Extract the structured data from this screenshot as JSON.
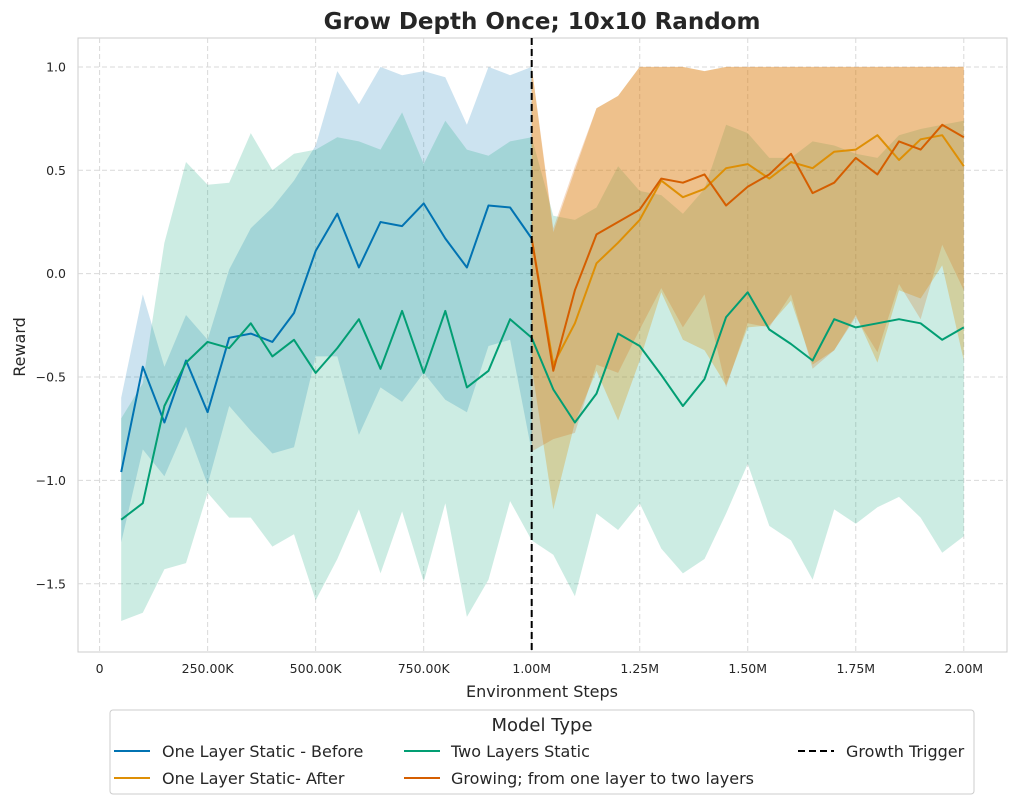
{
  "chart_data": {
    "type": "line",
    "title": "Grow Depth Once; 10x10 Random",
    "xlabel": "Environment Steps",
    "ylabel": "Reward",
    "xlim": [
      -50000,
      2100000
    ],
    "ylim": [
      -1.83,
      1.14
    ],
    "x_ticks": [
      {
        "value": 0,
        "label": "0"
      },
      {
        "value": 250000,
        "label": "250.00K"
      },
      {
        "value": 500000,
        "label": "500.00K"
      },
      {
        "value": 750000,
        "label": "750.00K"
      },
      {
        "value": 1000000,
        "label": "1.00M"
      },
      {
        "value": 1250000,
        "label": "1.25M"
      },
      {
        "value": 1500000,
        "label": "1.50M"
      },
      {
        "value": 1750000,
        "label": "1.75M"
      },
      {
        "value": 2000000,
        "label": "2.00M"
      }
    ],
    "y_ticks": [
      {
        "value": 1.0,
        "label": "1.0"
      },
      {
        "value": 0.5,
        "label": "0.5"
      },
      {
        "value": 0.0,
        "label": "0.0"
      },
      {
        "value": -0.5,
        "label": "−0.5"
      },
      {
        "value": -1.0,
        "label": "−1.0"
      },
      {
        "value": -1.5,
        "label": "−1.5"
      }
    ],
    "grid": true,
    "legend_title": "Model Type",
    "legend_position": "bottom-center",
    "series": [
      {
        "name": "One Layer Static - Before",
        "color": "#0173b2",
        "x": [
          50000,
          100000,
          150000,
          200000,
          250000,
          300000,
          350000,
          400000,
          450000,
          500000,
          550000,
          600000,
          650000,
          700000,
          750000,
          800000,
          850000,
          900000,
          950000,
          1000000
        ],
        "values": [
          -0.96,
          -0.45,
          -0.72,
          -0.42,
          -0.67,
          -0.31,
          -0.29,
          -0.33,
          -0.19,
          0.11,
          0.29,
          0.03,
          0.25,
          0.23,
          0.34,
          0.17,
          0.03,
          0.33,
          0.32,
          0.17
        ],
        "upper": [
          -0.6,
          -0.1,
          -0.45,
          -0.2,
          -0.32,
          0.02,
          0.22,
          0.32,
          0.45,
          0.62,
          0.98,
          0.82,
          1.0,
          0.96,
          0.98,
          0.95,
          0.72,
          1.0,
          0.96,
          1.0
        ],
        "lower": [
          -1.3,
          -0.85,
          -0.98,
          -0.74,
          -1.02,
          -0.64,
          -0.76,
          -0.87,
          -0.84,
          -0.4,
          -0.4,
          -0.78,
          -0.55,
          -0.62,
          -0.48,
          -0.61,
          -0.67,
          -0.35,
          -0.32,
          -0.86
        ]
      },
      {
        "name": "One Layer Static- After",
        "color": "#de8f05",
        "x": [
          1000000,
          1050000,
          1100000,
          1150000,
          1200000,
          1250000,
          1300000,
          1350000,
          1400000,
          1450000,
          1500000,
          1550000,
          1600000,
          1650000,
          1700000,
          1750000,
          1800000,
          1850000,
          1900000,
          1950000,
          2000000
        ],
        "values": [
          0.17,
          -0.44,
          -0.24,
          0.05,
          0.15,
          0.26,
          0.45,
          0.37,
          0.41,
          0.51,
          0.53,
          0.46,
          0.54,
          0.51,
          0.59,
          0.6,
          0.67,
          0.55,
          0.65,
          0.67,
          0.52
        ],
        "upper": [
          1.0,
          0.2,
          0.5,
          0.8,
          0.86,
          1.0,
          1.0,
          1.0,
          0.98,
          1.0,
          1.0,
          1.0,
          1.0,
          1.0,
          1.0,
          1.0,
          1.0,
          1.0,
          1.0,
          1.0,
          1.0
        ],
        "lower": [
          -0.45,
          -1.14,
          -0.72,
          -0.47,
          -0.71,
          -0.42,
          -0.09,
          -0.32,
          -0.37,
          -0.54,
          -0.26,
          -0.25,
          -0.13,
          -0.44,
          -0.37,
          -0.2,
          -0.43,
          -0.08,
          -0.12,
          0.04,
          -0.42
        ]
      },
      {
        "name": "Two Layers Static",
        "color": "#029e73",
        "x": [
          50000,
          100000,
          150000,
          200000,
          250000,
          300000,
          350000,
          400000,
          450000,
          500000,
          550000,
          600000,
          650000,
          700000,
          750000,
          800000,
          850000,
          900000,
          950000,
          1000000,
          1050000,
          1100000,
          1150000,
          1200000,
          1250000,
          1300000,
          1350000,
          1400000,
          1450000,
          1500000,
          1550000,
          1600000,
          1650000,
          1700000,
          1750000,
          1800000,
          1850000,
          1900000,
          1950000,
          2000000
        ],
        "values": [
          -1.19,
          -1.11,
          -0.64,
          -0.43,
          -0.33,
          -0.36,
          -0.24,
          -0.4,
          -0.32,
          -0.48,
          -0.36,
          -0.22,
          -0.46,
          -0.18,
          -0.48,
          -0.18,
          -0.55,
          -0.47,
          -0.22,
          -0.31,
          -0.56,
          -0.72,
          -0.58,
          -0.29,
          -0.35,
          -0.49,
          -0.64,
          -0.51,
          -0.21,
          -0.09,
          -0.27,
          -0.34,
          -0.42,
          -0.22,
          -0.26,
          -0.24,
          -0.22,
          -0.24,
          -0.32,
          -0.26
        ],
        "upper": [
          -0.7,
          -0.53,
          0.15,
          0.54,
          0.43,
          0.44,
          0.68,
          0.5,
          0.58,
          0.6,
          0.66,
          0.64,
          0.6,
          0.78,
          0.53,
          0.74,
          0.6,
          0.57,
          0.64,
          0.66,
          0.28,
          0.26,
          0.32,
          0.52,
          0.4,
          0.38,
          0.29,
          0.41,
          0.72,
          0.68,
          0.56,
          0.56,
          0.64,
          0.62,
          0.58,
          0.56,
          0.67,
          0.7,
          0.72,
          0.74
        ],
        "lower": [
          -1.68,
          -1.64,
          -1.43,
          -1.4,
          -1.06,
          -1.18,
          -1.18,
          -1.32,
          -1.26,
          -1.58,
          -1.38,
          -1.14,
          -1.45,
          -1.15,
          -1.49,
          -1.11,
          -1.66,
          -1.48,
          -1.1,
          -1.29,
          -1.36,
          -1.56,
          -1.16,
          -1.24,
          -1.11,
          -1.33,
          -1.45,
          -1.38,
          -1.16,
          -0.92,
          -1.22,
          -1.29,
          -1.48,
          -1.14,
          -1.21,
          -1.13,
          -1.08,
          -1.18,
          -1.35,
          -1.27
        ]
      },
      {
        "name": "Growing; from one layer to two layers",
        "color": "#d55e00",
        "x": [
          1000000,
          1050000,
          1100000,
          1150000,
          1200000,
          1250000,
          1300000,
          1350000,
          1400000,
          1450000,
          1500000,
          1550000,
          1600000,
          1650000,
          1700000,
          1750000,
          1800000,
          1850000,
          1900000,
          1950000,
          2000000
        ],
        "values": [
          0.17,
          -0.47,
          -0.08,
          0.19,
          0.25,
          0.31,
          0.46,
          0.44,
          0.48,
          0.33,
          0.42,
          0.48,
          0.58,
          0.39,
          0.44,
          0.56,
          0.48,
          0.64,
          0.6,
          0.72,
          0.66
        ],
        "upper": [
          1.0,
          0.22,
          0.52,
          0.8,
          0.86,
          1.0,
          1.0,
          1.0,
          0.98,
          1.0,
          1.0,
          1.0,
          1.0,
          1.0,
          1.0,
          1.0,
          1.0,
          1.0,
          1.0,
          1.0,
          1.0
        ],
        "lower": [
          -0.86,
          -0.8,
          -0.77,
          -0.44,
          -0.48,
          -0.27,
          -0.07,
          -0.26,
          -0.1,
          -0.55,
          -0.24,
          -0.26,
          -0.1,
          -0.46,
          -0.37,
          -0.21,
          -0.38,
          -0.05,
          -0.22,
          0.14,
          -0.08
        ]
      }
    ],
    "growth_trigger": {
      "name": "Growth Trigger",
      "x": 1000000,
      "color": "#000000"
    }
  }
}
